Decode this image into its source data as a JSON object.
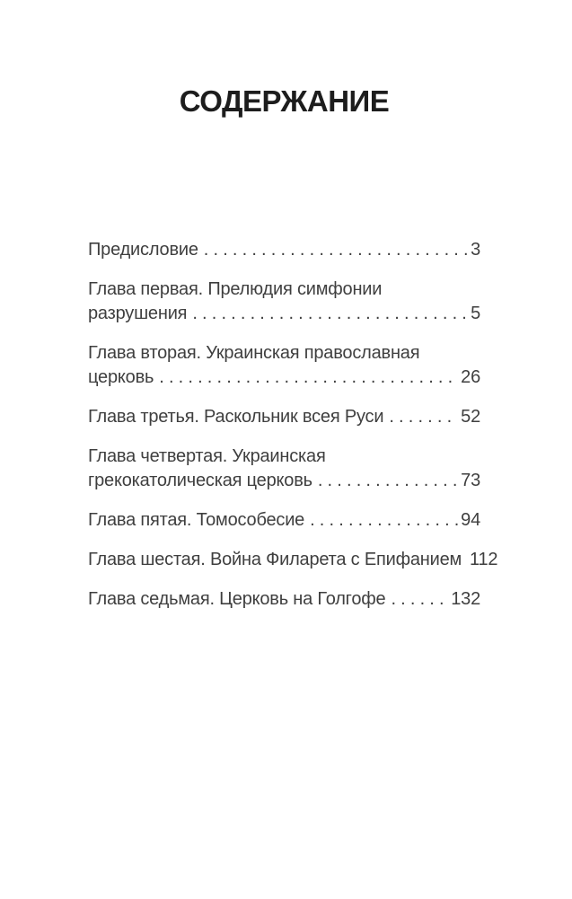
{
  "page": {
    "title": "СОДЕРЖАНИЕ",
    "colors": {
      "text": "#3f3f3f",
      "title": "#1d1d1d",
      "background": "#ffffff"
    },
    "entries": [
      {
        "lines": [
          "Предисловие"
        ],
        "page": "3"
      },
      {
        "lines": [
          "Глава первая. Прелюдия симфонии",
          "разрушения"
        ],
        "page": "5"
      },
      {
        "lines": [
          "Глава вторая. Украинская православная",
          "церковь"
        ],
        "page": "26"
      },
      {
        "lines": [
          "Глава третья. Раскольник всея Руси"
        ],
        "page": "52"
      },
      {
        "lines": [
          "Глава четвертая. Украинская",
          "грекокатолическая церковь"
        ],
        "page": "73"
      },
      {
        "lines": [
          "Глава пятая. Томособесие"
        ],
        "page": "94"
      },
      {
        "lines": [
          "Глава шестая. Война Филарета с Епифанием"
        ],
        "page": "112"
      },
      {
        "lines": [
          "Глава седьмая. Церковь на Голгофе"
        ],
        "page": "132"
      }
    ]
  }
}
